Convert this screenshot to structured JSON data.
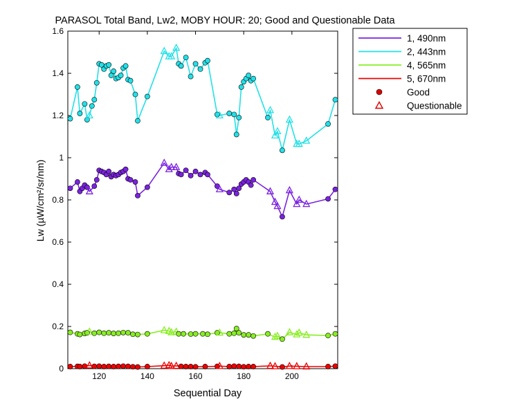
{
  "chart_data": {
    "type": "line",
    "title": "PARASOL Total Band,  Lw2, MOBY HOUR: 20;  Good and Questionable Data",
    "xlabel": "Sequential Day",
    "ylabel": "Lw (µW/cm²/sr/nm)",
    "xlim": [
      107,
      219
    ],
    "ylim": [
      0,
      1.6
    ],
    "xticks": [
      120,
      140,
      160,
      180,
      200
    ],
    "xtick_labels": [
      "120",
      "140",
      "160",
      "180",
      "200"
    ],
    "yticks": [
      0,
      0.2,
      0.4,
      0.6,
      0.8,
      1,
      1.2,
      1.4,
      1.6
    ],
    "ytick_labels": [
      "0",
      "0.2",
      "0.4",
      "0.6",
      "0.8",
      "1",
      "1.2",
      "1.4",
      "1.6"
    ],
    "grid": false,
    "legend_position": "outside-top-right",
    "legend_markers": [
      {
        "label": "Good",
        "marker": "circle",
        "color": "#dd0000"
      },
      {
        "label": "Questionable",
        "marker": "triangle",
        "color": "#dd0000"
      }
    ],
    "series": [
      {
        "name": "1, 490nm",
        "color": "#7b22e0",
        "points": [
          [
            108,
            0.855,
            "g"
          ],
          [
            111,
            0.885,
            "g"
          ],
          [
            112,
            0.84,
            "g"
          ],
          [
            113,
            0.855,
            "g"
          ],
          [
            114,
            0.87,
            "g"
          ],
          [
            115,
            0.86,
            "g"
          ],
          [
            116,
            0.84,
            "q"
          ],
          [
            118,
            0.865,
            "g"
          ],
          [
            119,
            0.895,
            "g"
          ],
          [
            120,
            0.94,
            "g"
          ],
          [
            121,
            0.935,
            "g"
          ],
          [
            122,
            0.93,
            "g"
          ],
          [
            123,
            0.92,
            "g"
          ],
          [
            124,
            0.935,
            "g"
          ],
          [
            125,
            0.91,
            "g"
          ],
          [
            126,
            0.92,
            "g"
          ],
          [
            127,
            0.915,
            "g"
          ],
          [
            128,
            0.92,
            "g"
          ],
          [
            129,
            0.93,
            "g"
          ],
          [
            130,
            0.935,
            "g"
          ],
          [
            131,
            0.945,
            "g"
          ],
          [
            132,
            0.9,
            "g"
          ],
          [
            133,
            0.895,
            "g"
          ],
          [
            135,
            0.885,
            "g"
          ],
          [
            136,
            0.82,
            "g"
          ],
          [
            140,
            0.86,
            "g"
          ],
          [
            147,
            0.975,
            "q"
          ],
          [
            149,
            0.945,
            "q"
          ],
          [
            150,
            0.955,
            "q"
          ],
          [
            152,
            0.955,
            "q"
          ],
          [
            153,
            0.925,
            "g"
          ],
          [
            154,
            0.92,
            "g"
          ],
          [
            156,
            0.94,
            "g"
          ],
          [
            158,
            0.915,
            "g"
          ],
          [
            160,
            0.935,
            "g"
          ],
          [
            162,
            0.92,
            "g"
          ],
          [
            164,
            0.93,
            "g"
          ],
          [
            165,
            0.92,
            "g"
          ],
          [
            169,
            0.865,
            "g"
          ],
          [
            170,
            0.85,
            "q"
          ],
          [
            174,
            0.835,
            "g"
          ],
          [
            176,
            0.85,
            "g"
          ],
          [
            177,
            0.83,
            "g"
          ],
          [
            178,
            0.855,
            "g"
          ],
          [
            179,
            0.875,
            "g"
          ],
          [
            180,
            0.885,
            "g"
          ],
          [
            181,
            0.895,
            "g"
          ],
          [
            182,
            0.885,
            "g"
          ],
          [
            183,
            0.87,
            "g"
          ],
          [
            184,
            0.895,
            "g"
          ],
          [
            191,
            0.84,
            "q"
          ],
          [
            193,
            0.79,
            "q"
          ],
          [
            194,
            0.77,
            "q"
          ],
          [
            196,
            0.72,
            "g"
          ],
          [
            199,
            0.845,
            "q"
          ],
          [
            202,
            0.78,
            "q"
          ],
          [
            203,
            0.8,
            "q"
          ],
          [
            206,
            0.78,
            "q"
          ],
          [
            215,
            0.805,
            "g"
          ],
          [
            218,
            0.85,
            "g"
          ]
        ]
      },
      {
        "name": "2, 443nm",
        "color": "#22e0e8",
        "points": [
          [
            108,
            1.185,
            "g"
          ],
          [
            111,
            1.335,
            "g"
          ],
          [
            112,
            1.21,
            "g"
          ],
          [
            114,
            1.255,
            "g"
          ],
          [
            115,
            1.18,
            "g"
          ],
          [
            116,
            1.2,
            "q"
          ],
          [
            117,
            1.245,
            "g"
          ],
          [
            118,
            1.275,
            "g"
          ],
          [
            119,
            1.355,
            "g"
          ],
          [
            120,
            1.445,
            "g"
          ],
          [
            121,
            1.44,
            "g"
          ],
          [
            122,
            1.42,
            "g"
          ],
          [
            123,
            1.435,
            "g"
          ],
          [
            124,
            1.44,
            "g"
          ],
          [
            125,
            1.39,
            "g"
          ],
          [
            126,
            1.41,
            "g"
          ],
          [
            127,
            1.375,
            "g"
          ],
          [
            128,
            1.38,
            "g"
          ],
          [
            129,
            1.39,
            "g"
          ],
          [
            130,
            1.425,
            "g"
          ],
          [
            131,
            1.435,
            "g"
          ],
          [
            132,
            1.37,
            "g"
          ],
          [
            133,
            1.365,
            "g"
          ],
          [
            135,
            1.3,
            "g"
          ],
          [
            136,
            1.175,
            "g"
          ],
          [
            140,
            1.29,
            "g"
          ],
          [
            147,
            1.505,
            "q"
          ],
          [
            149,
            1.48,
            "q"
          ],
          [
            150,
            1.48,
            "q"
          ],
          [
            152,
            1.52,
            "q"
          ],
          [
            153,
            1.445,
            "g"
          ],
          [
            154,
            1.435,
            "g"
          ],
          [
            156,
            1.475,
            "g"
          ],
          [
            158,
            1.385,
            "g"
          ],
          [
            160,
            1.445,
            "g"
          ],
          [
            162,
            1.42,
            "g"
          ],
          [
            164,
            1.45,
            "g"
          ],
          [
            165,
            1.46,
            "g"
          ],
          [
            169,
            1.205,
            "g"
          ],
          [
            170,
            1.2,
            "q"
          ],
          [
            174,
            1.21,
            "g"
          ],
          [
            176,
            1.205,
            "g"
          ],
          [
            177,
            1.11,
            "g"
          ],
          [
            178,
            1.19,
            "g"
          ],
          [
            179,
            1.335,
            "g"
          ],
          [
            180,
            1.36,
            "g"
          ],
          [
            181,
            1.375,
            "g"
          ],
          [
            182,
            1.39,
            "g"
          ],
          [
            183,
            1.365,
            "g"
          ],
          [
            184,
            1.375,
            "g"
          ],
          [
            190,
            1.19,
            "g"
          ],
          [
            191,
            1.225,
            "q"
          ],
          [
            193,
            1.105,
            "q"
          ],
          [
            194,
            1.125,
            "q"
          ],
          [
            196,
            1.035,
            "g"
          ],
          [
            199,
            1.18,
            "q"
          ],
          [
            202,
            1.065,
            "q"
          ],
          [
            203,
            1.065,
            "q"
          ],
          [
            206,
            1.08,
            "q"
          ],
          [
            215,
            1.16,
            "g"
          ],
          [
            218,
            1.275,
            "g"
          ]
        ]
      },
      {
        "name": "4, 565nm",
        "color": "#88ee22",
        "points": [
          [
            108,
            0.172,
            "g"
          ],
          [
            111,
            0.165,
            "g"
          ],
          [
            112,
            0.162,
            "g"
          ],
          [
            114,
            0.167,
            "g"
          ],
          [
            115,
            0.17,
            "g"
          ],
          [
            116,
            0.175,
            "q"
          ],
          [
            118,
            0.168,
            "g"
          ],
          [
            120,
            0.172,
            "g"
          ],
          [
            122,
            0.168,
            "g"
          ],
          [
            124,
            0.17,
            "g"
          ],
          [
            126,
            0.167,
            "g"
          ],
          [
            128,
            0.168,
            "g"
          ],
          [
            130,
            0.171,
            "g"
          ],
          [
            132,
            0.17,
            "g"
          ],
          [
            134,
            0.163,
            "g"
          ],
          [
            136,
            0.162,
            "g"
          ],
          [
            140,
            0.165,
            "g"
          ],
          [
            147,
            0.182,
            "q"
          ],
          [
            149,
            0.178,
            "q"
          ],
          [
            150,
            0.172,
            "q"
          ],
          [
            152,
            0.175,
            "q"
          ],
          [
            153,
            0.165,
            "g"
          ],
          [
            155,
            0.165,
            "g"
          ],
          [
            158,
            0.164,
            "g"
          ],
          [
            160,
            0.165,
            "g"
          ],
          [
            163,
            0.165,
            "g"
          ],
          [
            165,
            0.163,
            "g"
          ],
          [
            169,
            0.17,
            "g"
          ],
          [
            170,
            0.17,
            "q"
          ],
          [
            174,
            0.165,
            "g"
          ],
          [
            176,
            0.168,
            "g"
          ],
          [
            177,
            0.19,
            "g"
          ],
          [
            178,
            0.17,
            "g"
          ],
          [
            180,
            0.16,
            "g"
          ],
          [
            182,
            0.16,
            "g"
          ],
          [
            184,
            0.155,
            "g"
          ],
          [
            190,
            0.165,
            "g"
          ],
          [
            193,
            0.15,
            "q"
          ],
          [
            194,
            0.155,
            "q"
          ],
          [
            196,
            0.14,
            "g"
          ],
          [
            199,
            0.172,
            "q"
          ],
          [
            202,
            0.162,
            "q"
          ],
          [
            203,
            0.17,
            "q"
          ],
          [
            206,
            0.16,
            "q"
          ],
          [
            215,
            0.157,
            "g"
          ],
          [
            218,
            0.165,
            "g"
          ]
        ]
      },
      {
        "name": "5, 670nm",
        "color": "#ee0000",
        "points": [
          [
            108,
            0.01,
            "g"
          ],
          [
            111,
            0.011,
            "g"
          ],
          [
            112,
            0.01,
            "g"
          ],
          [
            114,
            0.012,
            "g"
          ],
          [
            116,
            0.015,
            "q"
          ],
          [
            118,
            0.011,
            "g"
          ],
          [
            120,
            0.012,
            "g"
          ],
          [
            122,
            0.01,
            "g"
          ],
          [
            124,
            0.011,
            "g"
          ],
          [
            126,
            0.01,
            "g"
          ],
          [
            128,
            0.011,
            "g"
          ],
          [
            130,
            0.012,
            "g"
          ],
          [
            132,
            0.011,
            "g"
          ],
          [
            134,
            0.009,
            "g"
          ],
          [
            136,
            0.008,
            "g"
          ],
          [
            140,
            0.01,
            "g"
          ],
          [
            147,
            0.014,
            "q"
          ],
          [
            149,
            0.016,
            "q"
          ],
          [
            150,
            0.012,
            "q"
          ],
          [
            152,
            0.013,
            "q"
          ],
          [
            154,
            0.011,
            "g"
          ],
          [
            156,
            0.01,
            "g"
          ],
          [
            158,
            0.01,
            "g"
          ],
          [
            160,
            0.009,
            "g"
          ],
          [
            164,
            0.01,
            "g"
          ],
          [
            169,
            0.011,
            "g"
          ],
          [
            170,
            0.012,
            "q"
          ],
          [
            174,
            0.01,
            "g"
          ],
          [
            176,
            0.012,
            "g"
          ],
          [
            178,
            0.011,
            "g"
          ],
          [
            180,
            0.009,
            "g"
          ],
          [
            182,
            0.01,
            "g"
          ],
          [
            184,
            0.01,
            "g"
          ],
          [
            191,
            0.013,
            "q"
          ],
          [
            193,
            0.011,
            "q"
          ],
          [
            196,
            0.008,
            "g"
          ],
          [
            199,
            0.012,
            "q"
          ],
          [
            202,
            0.011,
            "q"
          ],
          [
            206,
            0.01,
            "q"
          ],
          [
            215,
            0.01,
            "g"
          ],
          [
            218,
            0.012,
            "g"
          ]
        ]
      }
    ]
  }
}
